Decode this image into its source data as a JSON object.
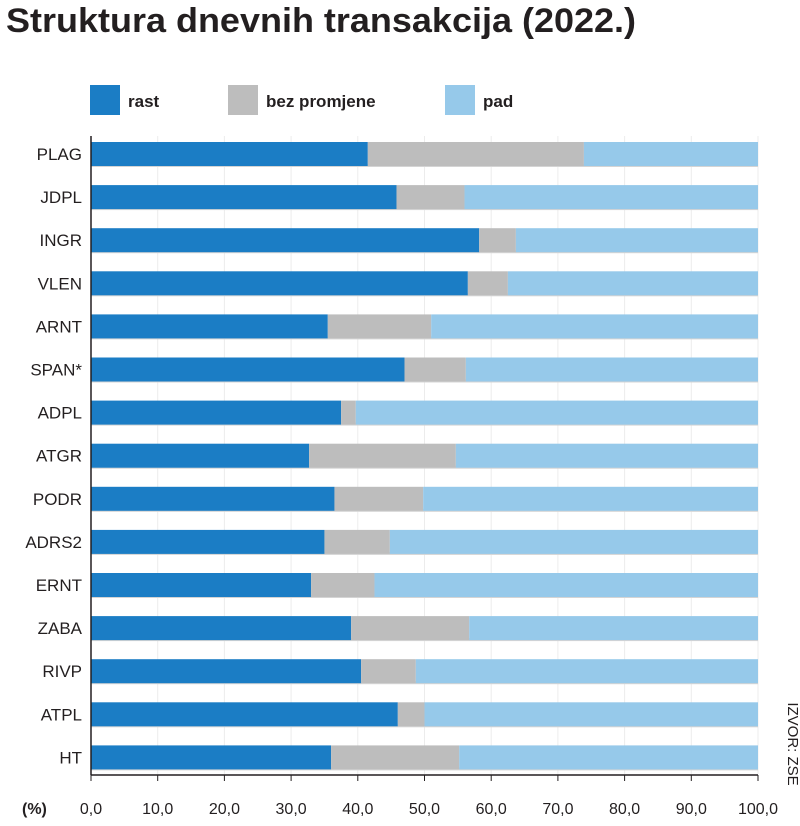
{
  "chart_data": {
    "type": "bar",
    "orientation": "horizontal",
    "stacked": true,
    "title": "Struktura dnevnih transakcija (2022.)",
    "unit_label": "(%)",
    "source": "IZVOR: ZSE",
    "xlim": [
      0,
      100
    ],
    "x_ticks": [
      "0,0",
      "10,0",
      "20,0",
      "30,0",
      "40,0",
      "50,0",
      "60,0",
      "70,0",
      "80,0",
      "90,0",
      "100,0"
    ],
    "legend_position": "top",
    "categories": [
      "PLAG",
      "JDPL",
      "INGR",
      "VLEN",
      "ARNT",
      "SPAN*",
      "ADPL",
      "ATGR",
      "PODR",
      "ADRS2",
      "ERNT",
      "ZABA",
      "RIVP",
      "ATPL",
      "HT"
    ],
    "series": [
      {
        "name": "rast",
        "color": "#1b7dc5",
        "values": [
          41.5,
          45.8,
          58.2,
          56.5,
          35.5,
          47.0,
          37.5,
          32.7,
          36.5,
          35.0,
          33.0,
          39.0,
          40.5,
          46.0,
          36.0
        ]
      },
      {
        "name": "bez promjene",
        "color": "#bdbdbd",
        "values": [
          32.4,
          10.2,
          5.5,
          6.0,
          15.5,
          9.2,
          2.2,
          22.0,
          13.3,
          9.8,
          9.5,
          17.7,
          8.2,
          4.0,
          19.2
        ]
      },
      {
        "name": "pad",
        "color": "#96c9ea",
        "values": [
          26.1,
          44.0,
          36.3,
          37.5,
          49.0,
          43.8,
          60.3,
          45.3,
          50.2,
          55.2,
          57.5,
          43.3,
          51.3,
          50.0,
          44.8
        ]
      }
    ]
  }
}
